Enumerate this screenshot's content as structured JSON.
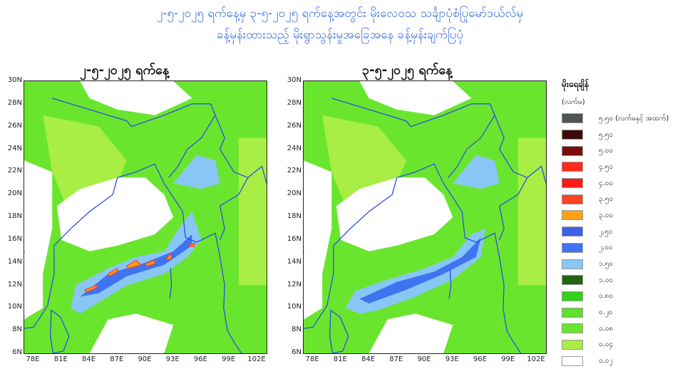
{
  "title_line1": "၂-၅-၂၀၂၅ ရက်နေ့မှ ၃-၅-၂၀၂၅ ရက်နေ့အတွင်း မိုးလေဝသ သင်္ချာပုံစံပြုမော်ဒယ်လ်မှ",
  "title_line2": "ခန့်မှန်းထားသည့် မိုးရွာသွန်းမှုအခြေအနေ ခန့်မှန်းချက်ပြပုံ",
  "panels": [
    {
      "title": "၂-၅-၂၀၂၅ ရက်နေ့"
    },
    {
      "title": "၃-၅-၂၀၂၅ ရက်နေ့"
    }
  ],
  "axes": {
    "lat_ticks": [
      "30N",
      "28N",
      "26N",
      "24N",
      "22N",
      "20N",
      "18N",
      "16N",
      "14N",
      "12N",
      "10N",
      "8N",
      "6N"
    ],
    "lon_ticks": [
      "78E",
      "81E",
      "84E",
      "87E",
      "90E",
      "93E",
      "96E",
      "99E",
      "102E"
    ],
    "lat_range": [
      6,
      30
    ],
    "lon_range": [
      77,
      103
    ]
  },
  "legend": {
    "title": "မိုးရေချိန်",
    "unit": "(လက်မ)",
    "items": [
      {
        "label": "၅.၅၀ (လက်မနှင့် အထက်)",
        "color": "#4d5456"
      },
      {
        "label": "၅.၅၀",
        "color": "#3a0a08"
      },
      {
        "label": "၅.၀၀",
        "color": "#7a0c0a"
      },
      {
        "label": "၄.၅၀",
        "color": "#ff2a1a"
      },
      {
        "label": "၄.၀၀",
        "color": "#ff1a1a"
      },
      {
        "label": "၃.၅၀",
        "color": "#ff4422"
      },
      {
        "label": "၃.၀၀",
        "color": "#ff9f1a"
      },
      {
        "label": "၂.၅၀",
        "color": "#3b62e6"
      },
      {
        "label": "၂.၀၀",
        "color": "#3f74f0"
      },
      {
        "label": "၁.၅၀",
        "color": "#88c6f5"
      },
      {
        "label": "၁.၀၀",
        "color": "#1f6512"
      },
      {
        "label": "၀.၈၀",
        "color": "#33d11a"
      },
      {
        "label": "၀.၂၀",
        "color": "#5fe02a"
      },
      {
        "label": "၀.၀၈",
        "color": "#6ae52e"
      },
      {
        "label": "၀.၀၄",
        "color": "#a8ee44"
      },
      {
        "label": "၀.၀၂",
        "color": "#ffffff"
      }
    ]
  }
}
